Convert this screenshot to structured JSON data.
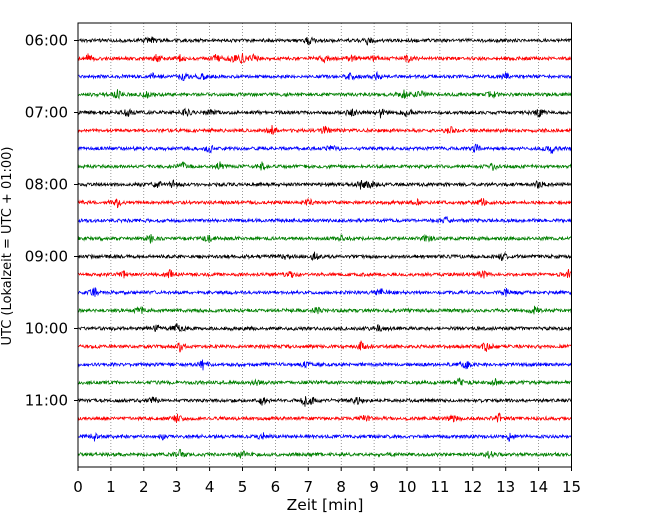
{
  "chart_data": {
    "type": "line",
    "title": "",
    "xlabel": "Zeit  [min]",
    "ylabel": "UTC (Lokalzeit = UTC + 01:00)",
    "xlim": [
      0,
      15
    ],
    "xticks": [
      "0",
      "1",
      "2",
      "3",
      "4",
      "5",
      "6",
      "7",
      "8",
      "9",
      "10",
      "11",
      "12",
      "13",
      "14",
      "15"
    ],
    "ytick_labels": [
      "06:00",
      "07:00",
      "08:00",
      "09:00",
      "10:00",
      "11:00"
    ],
    "grid": "vertical dotted",
    "trace_colors": [
      "#000000",
      "#ff0000",
      "#0000ff",
      "#008000"
    ],
    "traces": [
      {
        "start": "06:00",
        "color": "#000000",
        "events": [
          2.2,
          7.0,
          8.8
        ]
      },
      {
        "start": "06:15",
        "color": "#ff0000",
        "events": [
          0.3,
          2.4,
          3.1,
          4.2,
          4.7,
          5.0,
          5.3,
          7.5,
          8.3,
          9.0,
          10.0
        ]
      },
      {
        "start": "06:30",
        "color": "#0000ff",
        "events": [
          2.3,
          3.2,
          3.8,
          8.3,
          9.1,
          13.0
        ]
      },
      {
        "start": "06:45",
        "color": "#008000",
        "events": [
          1.2,
          2.1,
          9.9,
          10.4,
          12.6
        ]
      },
      {
        "start": "07:00",
        "color": "#000000",
        "events": [
          1.5,
          3.3,
          4.0,
          8.3,
          9.2,
          10.0,
          14.0
        ]
      },
      {
        "start": "07:15",
        "color": "#ff0000",
        "events": [
          5.9,
          7.5,
          11.3
        ]
      },
      {
        "start": "07:30",
        "color": "#0000ff",
        "events": [
          4.0,
          7.7,
          12.1,
          14.4
        ]
      },
      {
        "start": "07:45",
        "color": "#008000",
        "events": [
          3.2,
          4.3,
          5.6,
          12.6
        ]
      },
      {
        "start": "08:00",
        "color": "#000000",
        "events": [
          2.4,
          2.9,
          8.6,
          8.9,
          14.0
        ]
      },
      {
        "start": "08:15",
        "color": "#ff0000",
        "events": [
          1.2,
          7.0,
          10.3,
          12.3
        ]
      },
      {
        "start": "08:30",
        "color": "#0000ff",
        "events": [
          11.2
        ]
      },
      {
        "start": "08:45",
        "color": "#008000",
        "events": [
          2.2,
          4.0,
          8.0,
          10.6
        ]
      },
      {
        "start": "09:00",
        "color": "#000000",
        "events": [
          6.3,
          7.2,
          12.9
        ]
      },
      {
        "start": "09:15",
        "color": "#ff0000",
        "events": [
          1.4,
          2.8,
          6.5,
          12.3,
          14.9
        ]
      },
      {
        "start": "09:30",
        "color": "#0000ff",
        "events": [
          0.5,
          9.2,
          13.0
        ]
      },
      {
        "start": "09:45",
        "color": "#008000",
        "events": [
          1.9,
          7.3,
          13.9
        ]
      },
      {
        "start": "10:00",
        "color": "#000000",
        "events": [
          2.4,
          3.0,
          9.1
        ]
      },
      {
        "start": "10:15",
        "color": "#ff0000",
        "events": [
          3.1,
          8.6,
          12.4
        ]
      },
      {
        "start": "10:30",
        "color": "#0000ff",
        "events": [
          3.8,
          6.9,
          11.8
        ]
      },
      {
        "start": "10:45",
        "color": "#008000",
        "events": [
          5.4,
          11.6,
          12.7
        ]
      },
      {
        "start": "11:00",
        "color": "#000000",
        "events": [
          2.3,
          5.6,
          6.9,
          7.1,
          8.5
        ]
      },
      {
        "start": "11:15",
        "color": "#ff0000",
        "events": [
          3.0,
          8.7,
          11.4,
          12.8
        ]
      },
      {
        "start": "11:30",
        "color": "#0000ff",
        "events": [
          0.5,
          2.6,
          5.6,
          13.1
        ]
      },
      {
        "start": "11:45",
        "color": "#008000",
        "events": [
          3.1,
          5.0,
          12.5
        ]
      }
    ]
  }
}
